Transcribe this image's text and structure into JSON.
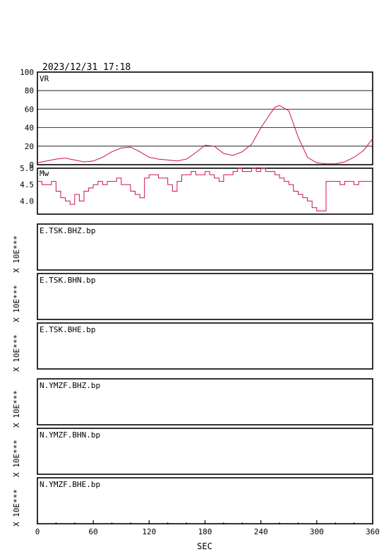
{
  "header": {
    "datetime": "2023/12/31  17:18"
  },
  "chart_data": [
    {
      "type": "line",
      "ylabel": "VR",
      "ylim": [
        0,
        100
      ],
      "yticks": [
        "100",
        "80",
        "60",
        "40",
        "20",
        "0"
      ],
      "grid": true,
      "color": "#d0104a",
      "x": [
        0,
        10,
        20,
        30,
        40,
        50,
        60,
        70,
        80,
        90,
        100,
        110,
        120,
        130,
        140,
        150,
        160,
        170,
        180,
        190,
        200,
        210,
        220,
        230,
        240,
        250,
        255,
        260,
        270,
        280,
        290,
        300,
        310,
        320,
        330,
        340,
        350,
        360
      ],
      "values": [
        2,
        4,
        6,
        7,
        5,
        3,
        4,
        8,
        14,
        18,
        19,
        14,
        8,
        6,
        5,
        4,
        6,
        13,
        21,
        20,
        12,
        10,
        14,
        22,
        40,
        55,
        62,
        64,
        58,
        30,
        8,
        2,
        1,
        1,
        3,
        8,
        15,
        28
      ]
    },
    {
      "type": "line",
      "ylabel": "Mw",
      "ylim": [
        3.6,
        5.0
      ],
      "yticks": [
        "5.0",
        "4.5",
        "4.0"
      ],
      "grid": false,
      "color": "#d0104a",
      "x": [
        0,
        5,
        10,
        15,
        20,
        25,
        30,
        35,
        40,
        45,
        50,
        55,
        60,
        65,
        70,
        75,
        80,
        85,
        90,
        95,
        100,
        105,
        110,
        115,
        120,
        125,
        130,
        135,
        140,
        145,
        150,
        155,
        160,
        165,
        170,
        175,
        180,
        185,
        190,
        195,
        200,
        205,
        210,
        215,
        220,
        225,
        230,
        235,
        240,
        245,
        250,
        255,
        260,
        265,
        270,
        275,
        280,
        285,
        290,
        295,
        300,
        305,
        310,
        315,
        320,
        325,
        330,
        335,
        340,
        345,
        350,
        355,
        360
      ],
      "values": [
        4.6,
        4.5,
        4.5,
        4.6,
        4.3,
        4.1,
        4.0,
        3.9,
        4.2,
        4.0,
        4.3,
        4.4,
        4.5,
        4.6,
        4.5,
        4.6,
        4.6,
        4.7,
        4.5,
        4.5,
        4.3,
        4.2,
        4.1,
        4.7,
        4.8,
        4.8,
        4.7,
        4.7,
        4.5,
        4.3,
        4.6,
        4.8,
        4.8,
        4.9,
        4.8,
        4.8,
        4.9,
        4.8,
        4.7,
        4.6,
        4.8,
        4.8,
        4.9,
        5.0,
        4.9,
        4.9,
        5.0,
        4.9,
        5.0,
        4.9,
        4.9,
        4.8,
        4.7,
        4.6,
        4.5,
        4.3,
        4.2,
        4.1,
        4.0,
        3.8,
        3.7,
        3.7,
        4.6,
        4.6,
        4.6,
        4.5,
        4.6,
        4.6,
        4.5,
        4.6,
        4.6,
        4.6,
        4.6
      ]
    }
  ],
  "traces": [
    {
      "label": "E.TSK.BHZ.bp",
      "ylabel": "X 10E***"
    },
    {
      "label": "E.TSK.BHN.bp",
      "ylabel": "X 10E***"
    },
    {
      "label": "E.TSK.BHE.bp",
      "ylabel": "X 10E***"
    },
    {
      "label": "N.YMZF.BHZ.bp",
      "ylabel": "X 10E***"
    },
    {
      "label": "N.YMZF.BHN.bp",
      "ylabel": "X 10E***"
    },
    {
      "label": "N.YMZF.BHE.bp",
      "ylabel": "X 10E***"
    }
  ],
  "x_axis": {
    "ticks": [
      "0",
      "60",
      "120",
      "180",
      "240",
      "300",
      "360"
    ],
    "label": "SEC",
    "xlim": [
      0,
      360
    ]
  }
}
